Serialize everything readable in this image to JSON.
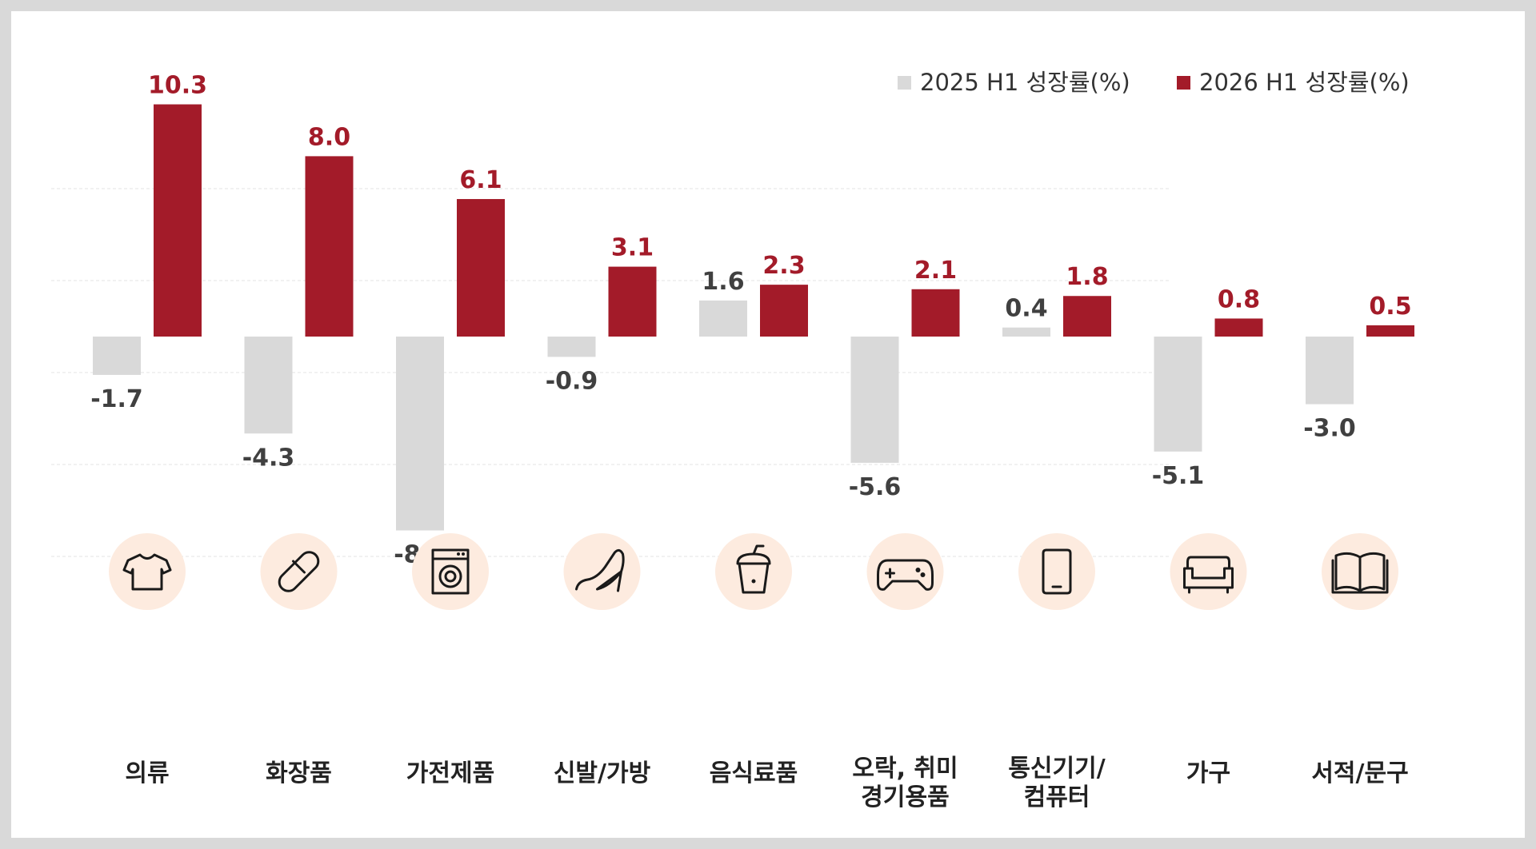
{
  "chart_data": {
    "type": "bar",
    "categories": [
      [
        "의류"
      ],
      [
        "화장품"
      ],
      [
        "가전제품"
      ],
      [
        "신발/가방"
      ],
      [
        "음식료품"
      ],
      [
        "오락, 취미",
        "경기용품"
      ],
      [
        "통신기기/",
        "컴퓨터"
      ],
      [
        "가구"
      ],
      [
        "서적/문구"
      ]
    ],
    "category_icons": [
      "tshirt-icon",
      "pill-icon",
      "washing-machine-icon",
      "high-heel-icon",
      "drink-cup-icon",
      "gamepad-icon",
      "smartphone-icon",
      "sofa-icon",
      "book-icon"
    ],
    "series": [
      {
        "name": "2025 H1 성장률(%)",
        "values": [
          -1.7,
          -4.3,
          -8.6,
          -0.9,
          1.6,
          -5.6,
          0.4,
          -5.1,
          -3.0
        ],
        "labels": [
          "-1.7",
          "-4.3",
          "-8.6",
          "-0.9",
          "1.6",
          "-5.6",
          "0.4",
          "-5.1",
          "-3.0"
        ],
        "color": "#d9d9d9",
        "label_color": "#404040"
      },
      {
        "name": "2026 H1 성장률(%)",
        "values": [
          10.3,
          8.0,
          6.1,
          3.1,
          2.3,
          2.1,
          1.8,
          0.8,
          0.5
        ],
        "labels": [
          "10.3",
          "8.0",
          "6.1",
          "3.1",
          "2.3",
          "2.1",
          "1.8",
          "0.8",
          "0.5"
        ],
        "color": "#a31b29",
        "label_color": "#a31b29"
      }
    ],
    "ylim": [
      -12,
      12
    ],
    "grid": true,
    "legend_position": "top-right",
    "icon_circle_color": "#fdebdf",
    "icon_stroke_color": "#1a1a1a"
  }
}
